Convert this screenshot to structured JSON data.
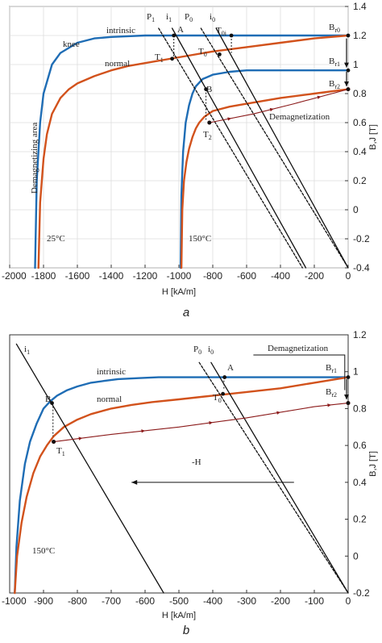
{
  "chart_data": [
    {
      "type": "line",
      "panel_label": "a",
      "xlabel": "H [kA/m]",
      "ylabel": "B,J [T]",
      "xlim": [
        -2000,
        0
      ],
      "ylim": [
        -0.4,
        1.4
      ],
      "xticks": [
        -2000,
        -1800,
        -1600,
        -1400,
        -1200,
        -1000,
        -800,
        -600,
        -400,
        -200,
        0
      ],
      "yticks": [
        -0.4,
        -0.2,
        0,
        0.2,
        0.4,
        0.6,
        0.8,
        1,
        1.2,
        1.4
      ],
      "grid": true,
      "series": [
        {
          "label": "intrinsic",
          "temperature": "25°C",
          "color": "#1f6db5",
          "x": [
            -1850,
            -1840,
            -1820,
            -1800,
            -1750,
            -1700,
            -1600,
            -1500,
            -1400,
            -1200,
            -1000,
            -800,
            -600,
            -400,
            -200,
            0
          ],
          "y": [
            -0.4,
            0.2,
            0.6,
            0.8,
            1.0,
            1.08,
            1.15,
            1.18,
            1.19,
            1.2,
            1.2,
            1.2,
            1.2,
            1.2,
            1.2,
            1.2
          ]
        },
        {
          "label": "normal",
          "temperature": "25°C",
          "color": "#d2521c",
          "x": [
            -1830,
            -1820,
            -1800,
            -1780,
            -1750,
            -1700,
            -1650,
            -1600,
            -1500,
            -1400,
            -1300,
            -1200,
            -1000,
            -800,
            -600,
            -400,
            -200,
            0
          ],
          "y": [
            -0.4,
            0.05,
            0.35,
            0.52,
            0.66,
            0.77,
            0.83,
            0.87,
            0.92,
            0.96,
            0.99,
            1.01,
            1.05,
            1.09,
            1.12,
            1.15,
            1.18,
            1.2
          ]
        },
        {
          "label": "intrinsic",
          "temperature": "150°C",
          "color": "#1f6db5",
          "x": [
            -990,
            -985,
            -975,
            -960,
            -940,
            -920,
            -900,
            -860,
            -800,
            -700,
            -600,
            -400,
            -200,
            0
          ],
          "y": [
            -0.4,
            0.1,
            0.4,
            0.6,
            0.72,
            0.8,
            0.85,
            0.9,
            0.93,
            0.95,
            0.96,
            0.96,
            0.96,
            0.96
          ]
        },
        {
          "label": "normal",
          "temperature": "150°C",
          "color": "#d2521c",
          "x": [
            -985,
            -980,
            -970,
            -955,
            -940,
            -920,
            -900,
            -880,
            -850,
            -800,
            -700,
            -600,
            -400,
            -200,
            0
          ],
          "y": [
            -0.4,
            0.0,
            0.2,
            0.33,
            0.42,
            0.5,
            0.56,
            0.6,
            0.64,
            0.68,
            0.71,
            0.73,
            0.77,
            0.8,
            0.83
          ]
        },
        {
          "label": "i1",
          "color": "#111111",
          "x": [
            -1040,
            -250
          ],
          "y": [
            1.25,
            -0.4
          ]
        },
        {
          "label": "P1",
          "color": "#111111",
          "dashed": true,
          "x": [
            -1120,
            -270
          ],
          "y": [
            1.25,
            -0.4
          ]
        },
        {
          "label": "i0",
          "color": "#111111",
          "x": [
            -780,
            0
          ],
          "y": [
            1.25,
            -0.4
          ]
        },
        {
          "label": "P0",
          "color": "#111111",
          "dashed": true,
          "x": [
            -870,
            0
          ],
          "y": [
            1.25,
            -0.4
          ]
        },
        {
          "label": "demagnetization path",
          "color": "#8b1a1a",
          "x": [
            -820,
            -560,
            -320,
            0
          ],
          "y": [
            0.6,
            0.66,
            0.73,
            0.83
          ]
        }
      ],
      "annotations": [
        "intrinsic",
        "normal",
        "knee",
        "Demagnetizing area",
        "25°C",
        "150°C",
        "Demagnetization",
        "P1",
        "i1",
        "P0",
        "i0",
        "A",
        "B",
        "T1",
        "T0",
        "T0i",
        "T2",
        "Br0",
        "Br1",
        "Br2"
      ]
    },
    {
      "type": "line",
      "panel_label": "b",
      "xlabel": "H [kA/m]",
      "ylabel": "B,J [T]",
      "xlim": [
        -1000,
        0
      ],
      "ylim": [
        -0.2,
        1.2
      ],
      "xticks": [
        -1000,
        -900,
        -800,
        -700,
        -600,
        -500,
        -400,
        -300,
        -200,
        -100,
        0
      ],
      "yticks": [
        -0.2,
        0,
        0.2,
        0.4,
        0.6,
        0.8,
        1,
        1.2
      ],
      "grid": false,
      "series": [
        {
          "label": "intrinsic",
          "temperature": "150°C",
          "color": "#1f6db5",
          "x": [
            -985,
            -980,
            -970,
            -955,
            -940,
            -920,
            -900,
            -880,
            -860,
            -830,
            -800,
            -760,
            -720,
            -680,
            -620,
            -560,
            -500,
            -400,
            -300,
            -200,
            -100,
            0
          ],
          "y": [
            -0.2,
            0.05,
            0.3,
            0.5,
            0.62,
            0.72,
            0.8,
            0.84,
            0.87,
            0.9,
            0.92,
            0.94,
            0.95,
            0.96,
            0.965,
            0.97,
            0.97,
            0.97,
            0.97,
            0.97,
            0.97,
            0.97
          ]
        },
        {
          "label": "normal",
          "temperature": "150°C",
          "color": "#d2521c",
          "x": [
            -985,
            -978,
            -965,
            -950,
            -930,
            -910,
            -890,
            -870,
            -840,
            -800,
            -760,
            -700,
            -640,
            -580,
            -500,
            -400,
            -300,
            -200,
            -100,
            0
          ],
          "y": [
            -0.2,
            0.0,
            0.18,
            0.32,
            0.45,
            0.54,
            0.6,
            0.65,
            0.7,
            0.74,
            0.77,
            0.8,
            0.82,
            0.835,
            0.85,
            0.87,
            0.89,
            0.91,
            0.94,
            0.97
          ]
        },
        {
          "label": "i1",
          "color": "#111111",
          "x": [
            -980,
            -545
          ],
          "y": [
            1.15,
            -0.2
          ]
        },
        {
          "label": "i0",
          "color": "#111111",
          "x": [
            -405,
            0
          ],
          "y": [
            1.05,
            -0.2
          ]
        },
        {
          "label": "P0",
          "color": "#111111",
          "dashed": true,
          "x": [
            -440,
            0
          ],
          "y": [
            1.05,
            -0.2
          ]
        },
        {
          "label": "demagnetization path",
          "color": "#8b1a1a",
          "x": [
            -870,
            -700,
            -500,
            -300,
            -100,
            0
          ],
          "y": [
            0.62,
            0.66,
            0.7,
            0.75,
            0.81,
            0.83
          ]
        }
      ],
      "annotations": [
        "intrinsic",
        "normal",
        "150°C",
        "Demagnetization",
        "-H",
        "i1",
        "P0",
        "i0",
        "A",
        "B",
        "T1",
        "T0",
        "Br1",
        "Br2"
      ]
    }
  ],
  "labels": {
    "a": {
      "intrinsic": "intrinsic",
      "normal": "normal",
      "knee": "knee",
      "demag_area": "Demagnetizing area",
      "t25": "25°C",
      "t150": "150°C",
      "demag": "Demagnetization",
      "P1": "P",
      "P1s": "1",
      "i1": "i",
      "i1s": "1",
      "P0": "P",
      "P0s": "0",
      "i0": "i",
      "i0s": "0",
      "A": "A",
      "B": "B",
      "T1": "T",
      "T1s": "1",
      "T0": "T",
      "T0s": "0",
      "T0i": "T",
      "T0is": "0i",
      "T2": "T",
      "T2s": "2",
      "Br0": "B",
      "Br0s": "r0",
      "Br1": "B",
      "Br1s": "r1",
      "Br2": "B",
      "Br2s": "r2",
      "caption": "a"
    },
    "b": {
      "intrinsic": "intrinsic",
      "normal": "normal",
      "t150": "150°C",
      "demag": "Demagnetization",
      "minusH": "-H",
      "i1": "i",
      "i1s": "1",
      "P0": "P",
      "P0s": "0",
      "i0": "i",
      "i0s": "0",
      "A": "A",
      "B": "B",
      "T1": "T",
      "T1s": "1",
      "T0": "T",
      "T0s": "0",
      "Br1": "B",
      "Br1s": "r1",
      "Br2": "B",
      "Br2s": "r2",
      "caption": "b"
    }
  }
}
